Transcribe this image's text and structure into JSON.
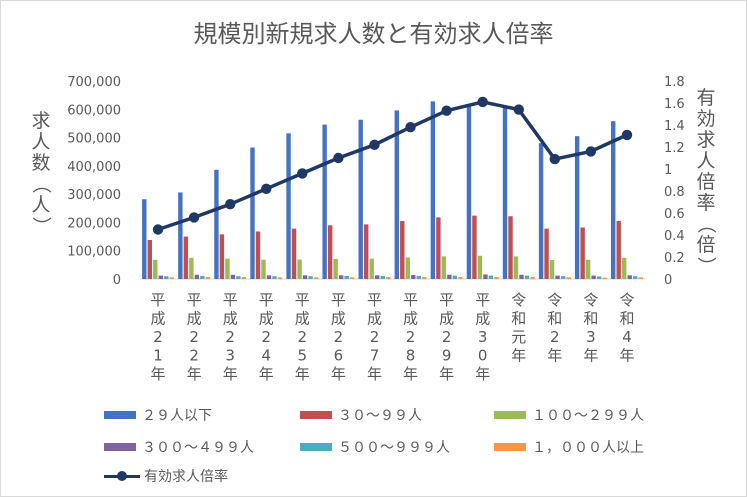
{
  "chart_data": {
    "type": "bar+line",
    "title": "規模別新規求人数と有効求人倍率",
    "ylabel": "求人数（人）",
    "y2label": "有効求人倍率（倍）",
    "categories": [
      "平成21年",
      "平成22年",
      "平成23年",
      "平成24年",
      "平成25年",
      "平成26年",
      "平成27年",
      "平成28年",
      "平成29年",
      "平成30年",
      "令和元年",
      "令和2年",
      "令和3年",
      "令和4年"
    ],
    "ylim": [
      0,
      700000
    ],
    "y2lim": [
      0,
      1.8
    ],
    "yticks": [
      "0",
      "100,000",
      "200,000",
      "300,000",
      "400,000",
      "500,000",
      "600,000",
      "700,000"
    ],
    "y2ticks": [
      "0",
      "0.2",
      "0.4",
      "0.6",
      "0.8",
      "1",
      "1.2",
      "1.4",
      "1.6",
      "1.8"
    ],
    "series": [
      {
        "name": "２９人以下",
        "color": "#4472c4",
        "axis": "left",
        "values": [
          282000,
          306000,
          386000,
          465000,
          515000,
          546000,
          563000,
          596000,
          628000,
          615000,
          610000,
          480000,
          505000,
          558000
        ]
      },
      {
        "name": "３０～９９人",
        "color": "#c0504d",
        "axis": "left",
        "values": [
          138000,
          150000,
          158000,
          168000,
          178000,
          190000,
          193000,
          205000,
          218000,
          224000,
          222000,
          178000,
          182000,
          205000
        ]
      },
      {
        "name": "１００～２９９人",
        "color": "#9bbb59",
        "axis": "left",
        "values": [
          68000,
          75000,
          72000,
          68000,
          69000,
          71000,
          72000,
          76000,
          80000,
          82000,
          80000,
          67000,
          68000,
          75000
        ]
      },
      {
        "name": "３００～４９９人",
        "color": "#8064a2",
        "axis": "left",
        "values": [
          12000,
          15000,
          15000,
          13000,
          13000,
          13000,
          13000,
          14000,
          15000,
          16000,
          15000,
          12000,
          12000,
          13000
        ]
      },
      {
        "name": "５００～９９９人",
        "color": "#4bacc6",
        "axis": "left",
        "values": [
          10000,
          11000,
          10000,
          10000,
          10000,
          11000,
          11000,
          11000,
          12000,
          12000,
          12000,
          10000,
          9000,
          10000
        ]
      },
      {
        "name": "１，０００人以上",
        "color": "#f79646",
        "axis": "left",
        "values": [
          6000,
          7000,
          7000,
          6000,
          6000,
          6000,
          7000,
          7000,
          7000,
          7000,
          7000,
          6000,
          5000,
          6000
        ]
      },
      {
        "name": "有効求人倍率",
        "color": "#203864",
        "axis": "right",
        "type": "line",
        "values": [
          0.45,
          0.56,
          0.68,
          0.82,
          0.96,
          1.1,
          1.22,
          1.38,
          1.53,
          1.61,
          1.54,
          1.09,
          1.16,
          1.31
        ]
      }
    ],
    "legend_position": "bottom"
  }
}
